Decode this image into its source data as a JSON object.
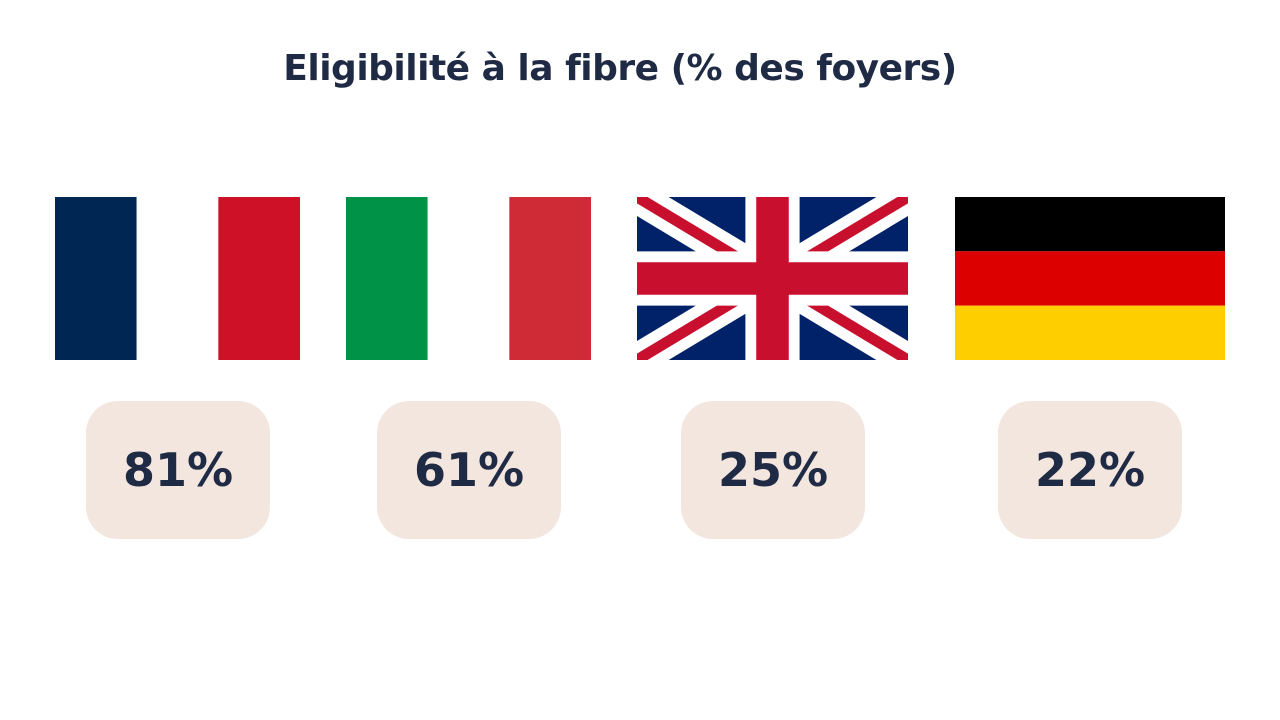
{
  "title": "Eligibilité à la fibre (% des foyers)",
  "colors": {
    "text": "#1f2a44",
    "badge_bg": "#f3e6df"
  },
  "chart_data": {
    "type": "table",
    "title": "Eligibilité à la fibre (% des foyers)",
    "categories": [
      "France",
      "Italy",
      "United Kingdom",
      "Germany"
    ],
    "values": [
      81,
      61,
      25,
      22
    ],
    "value_labels": [
      "81%",
      "61%",
      "25%",
      "22%"
    ],
    "unit": "%",
    "icons": [
      "france-flag-icon",
      "italy-flag-icon",
      "uk-flag-icon",
      "germany-flag-icon"
    ]
  }
}
